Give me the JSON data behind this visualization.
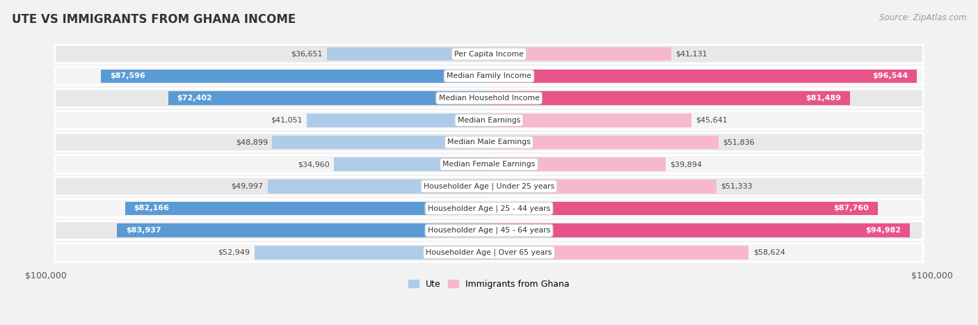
{
  "title": "UTE VS IMMIGRANTS FROM GHANA INCOME",
  "source": "Source: ZipAtlas.com",
  "categories": [
    "Per Capita Income",
    "Median Family Income",
    "Median Household Income",
    "Median Earnings",
    "Median Male Earnings",
    "Median Female Earnings",
    "Householder Age | Under 25 years",
    "Householder Age | 25 - 44 years",
    "Householder Age | 45 - 64 years",
    "Householder Age | Over 65 years"
  ],
  "ute_values": [
    36651,
    87596,
    72402,
    41051,
    48899,
    34960,
    49997,
    82166,
    83937,
    52949
  ],
  "ghana_values": [
    41131,
    96544,
    81489,
    45641,
    51836,
    39894,
    51333,
    87760,
    94982,
    58624
  ],
  "ute_labels": [
    "$36,651",
    "$87,596",
    "$72,402",
    "$41,051",
    "$48,899",
    "$34,960",
    "$49,997",
    "$82,166",
    "$83,937",
    "$52,949"
  ],
  "ghana_labels": [
    "$41,131",
    "$96,544",
    "$81,489",
    "$45,641",
    "$51,836",
    "$39,894",
    "$51,333",
    "$87,760",
    "$94,982",
    "$58,624"
  ],
  "ute_color_light": "#aecce8",
  "ute_color_dark": "#5b9bd5",
  "ghana_color_light": "#f7b8cc",
  "ghana_color_dark": "#e8538a",
  "max_value": 100000,
  "background_color": "#f2f2f2",
  "row_bg_even": "#e8e8e8",
  "row_bg_odd": "#f5f5f5",
  "label_color_inside": "#ffffff",
  "label_color_outside": "#555555",
  "large_threshold": 60000,
  "x_left_label": "$100,000",
  "x_right_label": "$100,000",
  "legend_ute": "Ute",
  "legend_ghana": "Immigrants from Ghana"
}
